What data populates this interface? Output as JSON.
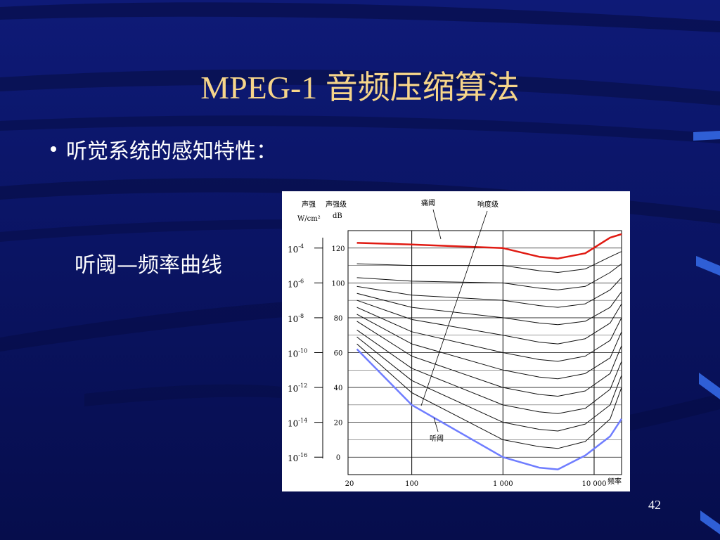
{
  "slide": {
    "title": "MPEG-1 音频压缩算法",
    "bullet": "听觉系统的感知特性：",
    "caption": "听阈—频率曲线",
    "page_number": "42",
    "colors": {
      "background": "#0b1469",
      "title": "#f6d58a",
      "pain_curve": "#e01a12",
      "threshold_curve": "#6f7dff"
    }
  },
  "chart_data": {
    "type": "line",
    "labels": {
      "intensity_header": "声强",
      "intensity_unit": "W/cm²",
      "level_header": "声强级",
      "level_unit": "dB",
      "pain": "痛阈",
      "loudness": "响度级",
      "threshold": "听阈",
      "x_axis": "频率"
    },
    "y_ticks_db": [
      "120",
      "100",
      "80",
      "60",
      "40",
      "20",
      "0"
    ],
    "intensity_ticks": [
      {
        "base": "10",
        "exp": "-4"
      },
      {
        "base": "10",
        "exp": "-6"
      },
      {
        "base": "10",
        "exp": "-8"
      },
      {
        "base": "10",
        "exp": "-10"
      },
      {
        "base": "10",
        "exp": "-12"
      },
      {
        "base": "10",
        "exp": "-14"
      },
      {
        "base": "10",
        "exp": "-16"
      }
    ],
    "x_ticks": [
      "20",
      "100",
      "1 000",
      "10 000"
    ],
    "xscale": "log",
    "xlim": [
      20,
      20000
    ],
    "ylim_db": [
      -10,
      130
    ],
    "series": [
      {
        "name": "痛阈",
        "color": "#e01a12",
        "x": [
          25,
          100,
          1000,
          2500,
          4000,
          8000,
          15000,
          20000
        ],
        "y": [
          123,
          122,
          120,
          115,
          114,
          117,
          126,
          128
        ]
      },
      {
        "name": "",
        "color": "#111111",
        "x": [
          25,
          100,
          1000,
          2500,
          4000,
          8000,
          15000,
          20000
        ],
        "y": [
          111,
          110,
          110,
          107,
          106,
          108,
          115,
          118
        ]
      },
      {
        "name": "",
        "color": "#111111",
        "x": [
          25,
          100,
          1000,
          2500,
          4000,
          8000,
          15000,
          20000
        ],
        "y": [
          103,
          101,
          100,
          97,
          96,
          98,
          106,
          111
        ]
      },
      {
        "name": "",
        "color": "#111111",
        "x": [
          25,
          100,
          1000,
          2500,
          4000,
          8000,
          15000,
          20000
        ],
        "y": [
          98,
          93,
          90,
          87,
          86,
          88,
          96,
          103
        ]
      },
      {
        "name": "",
        "color": "#111111",
        "x": [
          25,
          100,
          1000,
          2500,
          4000,
          8000,
          15000,
          20000
        ],
        "y": [
          94,
          86,
          80,
          77,
          76,
          78,
          86,
          95
        ]
      },
      {
        "name": "",
        "color": "#111111",
        "x": [
          25,
          100,
          1000,
          2500,
          4000,
          8000,
          15000,
          20000
        ],
        "y": [
          90,
          79,
          70,
          66,
          65,
          68,
          77,
          88
        ]
      },
      {
        "name": "",
        "color": "#111111",
        "x": [
          25,
          100,
          1000,
          2500,
          4000,
          8000,
          15000,
          20000
        ],
        "y": [
          86,
          72,
          60,
          56,
          55,
          58,
          67,
          80
        ]
      },
      {
        "name": "",
        "color": "#111111",
        "x": [
          25,
          100,
          1000,
          2500,
          4000,
          8000,
          15000,
          20000
        ],
        "y": [
          82,
          65,
          50,
          46,
          45,
          48,
          57,
          72
        ]
      },
      {
        "name": "",
        "color": "#111111",
        "x": [
          25,
          100,
          1000,
          2500,
          4000,
          8000,
          15000,
          20000
        ],
        "y": [
          78,
          58,
          40,
          36,
          35,
          38,
          48,
          64
        ]
      },
      {
        "name": "",
        "color": "#111111",
        "x": [
          25,
          100,
          1000,
          2500,
          4000,
          8000,
          15000,
          20000
        ],
        "y": [
          73,
          51,
          30,
          26,
          25,
          28,
          39,
          55
        ]
      },
      {
        "name": "",
        "color": "#111111",
        "x": [
          25,
          100,
          1000,
          2500,
          4000,
          8000,
          15000,
          20000
        ],
        "y": [
          69,
          44,
          20,
          16,
          15,
          19,
          30,
          47
        ]
      },
      {
        "name": "",
        "color": "#111111",
        "x": [
          25,
          100,
          1000,
          2500,
          4000,
          8000,
          15000,
          20000
        ],
        "y": [
          65,
          37,
          10,
          6,
          5,
          9,
          22,
          40
        ]
      },
      {
        "name": "听阈",
        "color": "#6f7dff",
        "x": [
          25,
          100,
          1000,
          2500,
          4000,
          8000,
          15000,
          20000
        ],
        "y": [
          62,
          30,
          0,
          -6,
          -7,
          1,
          12,
          22
        ]
      }
    ]
  }
}
